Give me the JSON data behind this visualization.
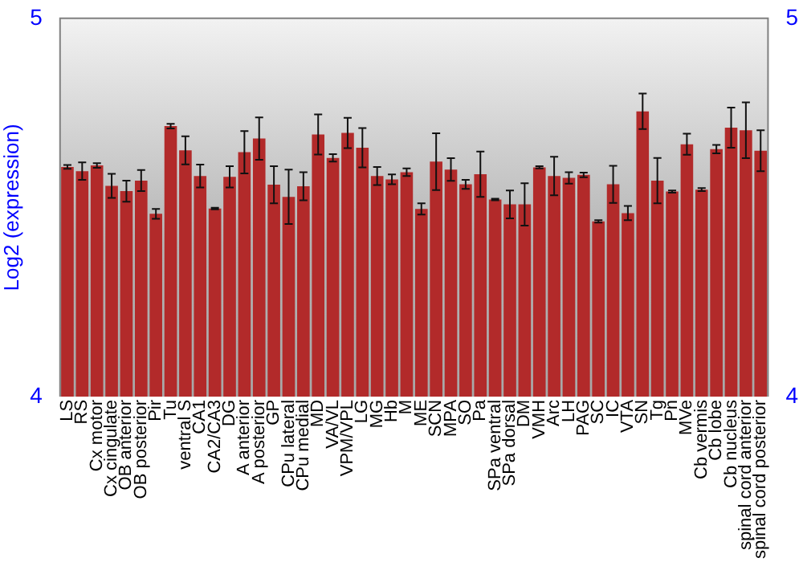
{
  "chart_data": {
    "type": "bar",
    "ylabel": "Log2 (expression)",
    "categories": [
      "LS",
      "RS",
      "Cx motor",
      "Cx cingulate",
      "OB anterior",
      "OB posterior",
      "Pir",
      "Tu",
      "ventral S",
      "CA1",
      "CA2/CA3",
      "DG",
      "A anterior",
      "A posterior",
      "GP",
      "CPu lateral",
      "CPu medial",
      "MD",
      "VA/VL",
      "VPM/VPL",
      "LG",
      "MG",
      "Hb",
      "M",
      "ME",
      "SCN",
      "MPA",
      "SO",
      "Pa",
      "SPa ventral",
      "SPa dorsal",
      "DM",
      "VMH",
      "Arc",
      "LH",
      "PAG",
      "SC",
      "IC",
      "VTA",
      "SN",
      "Tg",
      "Pn",
      "MVe",
      "Cb vermis",
      "Cb lobe",
      "Cb nucleus",
      "spinal cord anterior",
      "spinal cord posterior"
    ],
    "values": [
      4.607,
      4.596,
      4.611,
      4.557,
      4.543,
      4.571,
      4.483,
      4.715,
      4.651,
      4.583,
      4.497,
      4.581,
      4.646,
      4.682,
      4.56,
      4.528,
      4.556,
      4.693,
      4.631,
      4.697,
      4.658,
      4.583,
      4.574,
      4.593,
      4.496,
      4.621,
      4.6,
      4.561,
      4.588,
      4.521,
      4.508,
      4.508,
      4.606,
      4.583,
      4.578,
      4.586,
      4.463,
      4.561,
      4.485,
      4.754,
      4.571,
      4.542,
      4.667,
      4.547,
      4.654,
      4.711,
      4.704,
      4.65
    ],
    "errors": [
      0.005,
      0.023,
      0.006,
      0.032,
      0.028,
      0.028,
      0.013,
      0.006,
      0.037,
      0.03,
      0.002,
      0.028,
      0.056,
      0.056,
      0.049,
      0.072,
      0.037,
      0.053,
      0.01,
      0.04,
      0.052,
      0.024,
      0.013,
      0.01,
      0.015,
      0.075,
      0.03,
      0.012,
      0.06,
      0.002,
      0.037,
      0.056,
      0.003,
      0.051,
      0.015,
      0.006,
      0.003,
      0.049,
      0.019,
      0.047,
      0.06,
      0.003,
      0.028,
      0.004,
      0.011,
      0.053,
      0.074,
      0.054
    ],
    "color": "#b22a2a",
    "ylim": [
      4,
      5
    ],
    "yticks": [
      4,
      5
    ],
    "y2lim": [
      4,
      5
    ],
    "y2ticks": [
      4,
      5
    ],
    "grid": false,
    "legend": false
  }
}
